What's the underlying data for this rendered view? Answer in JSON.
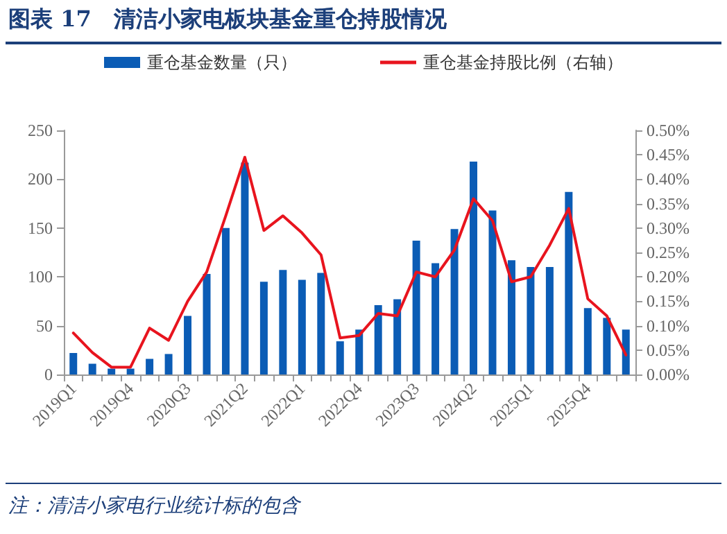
{
  "chart_data": {
    "type": "bar",
    "title": "图表 17　清洁小家电板块基金重仓持股情况",
    "categories": [
      "2019Q1",
      null,
      null,
      "2019Q4",
      null,
      null,
      "2020Q3",
      null,
      null,
      "2021Q2",
      null,
      null,
      "2022Q1",
      null,
      null,
      "2022Q4",
      null,
      null,
      "2023Q3",
      null,
      null,
      "2024Q2",
      null,
      null,
      "2025Q1",
      null,
      null,
      "2025Q4",
      null,
      null
    ],
    "series": [
      {
        "name": "重仓基金数量（只）",
        "color": "#0b5cb5",
        "values": [
          22,
          11,
          6,
          6,
          16,
          21,
          60,
          103,
          150,
          217,
          95,
          107,
          97,
          104,
          34,
          46,
          71,
          77,
          137,
          114,
          149,
          218,
          168,
          117,
          110,
          110,
          187,
          68,
          58,
          46
        ]
      },
      {
        "name": "重仓基金持股比例（右轴）",
        "type": "line",
        "axis": "y2",
        "color": "#e8141e",
        "values": [
          0.085,
          0.045,
          0.015,
          0.015,
          0.095,
          0.07,
          0.15,
          0.21,
          0.325,
          0.445,
          0.295,
          0.325,
          0.29,
          0.245,
          0.075,
          0.08,
          0.125,
          0.12,
          0.21,
          0.2,
          0.255,
          0.36,
          0.315,
          0.19,
          0.2,
          0.265,
          0.34,
          0.155,
          0.12,
          0.04
        ]
      }
    ],
    "ylim": [
      0,
      250
    ],
    "yticks": [
      0,
      50,
      100,
      150,
      200,
      250
    ],
    "y2lim": [
      0,
      0.5
    ],
    "y2ticks": [
      {
        "value": 0,
        "label": "0.00%"
      },
      {
        "value": 0.05,
        "label": "0.05%"
      },
      {
        "value": 0.1,
        "label": "0.10%"
      },
      {
        "value": 0.15,
        "label": "0.15%"
      },
      {
        "value": 0.2,
        "label": "0.20%"
      },
      {
        "value": 0.25,
        "label": "0.25%"
      },
      {
        "value": 0.3,
        "label": "0.30%"
      },
      {
        "value": 0.35,
        "label": "0.35%"
      },
      {
        "value": 0.4,
        "label": "0.40%"
      },
      {
        "value": 0.45,
        "label": "0.45%"
      },
      {
        "value": 0.5,
        "label": "0.50%"
      }
    ],
    "grid": false,
    "legend": "top",
    "marker": "none",
    "line_style": "solid",
    "annotations": [
      "注：清洁小家电行业统计标的包含"
    ]
  }
}
